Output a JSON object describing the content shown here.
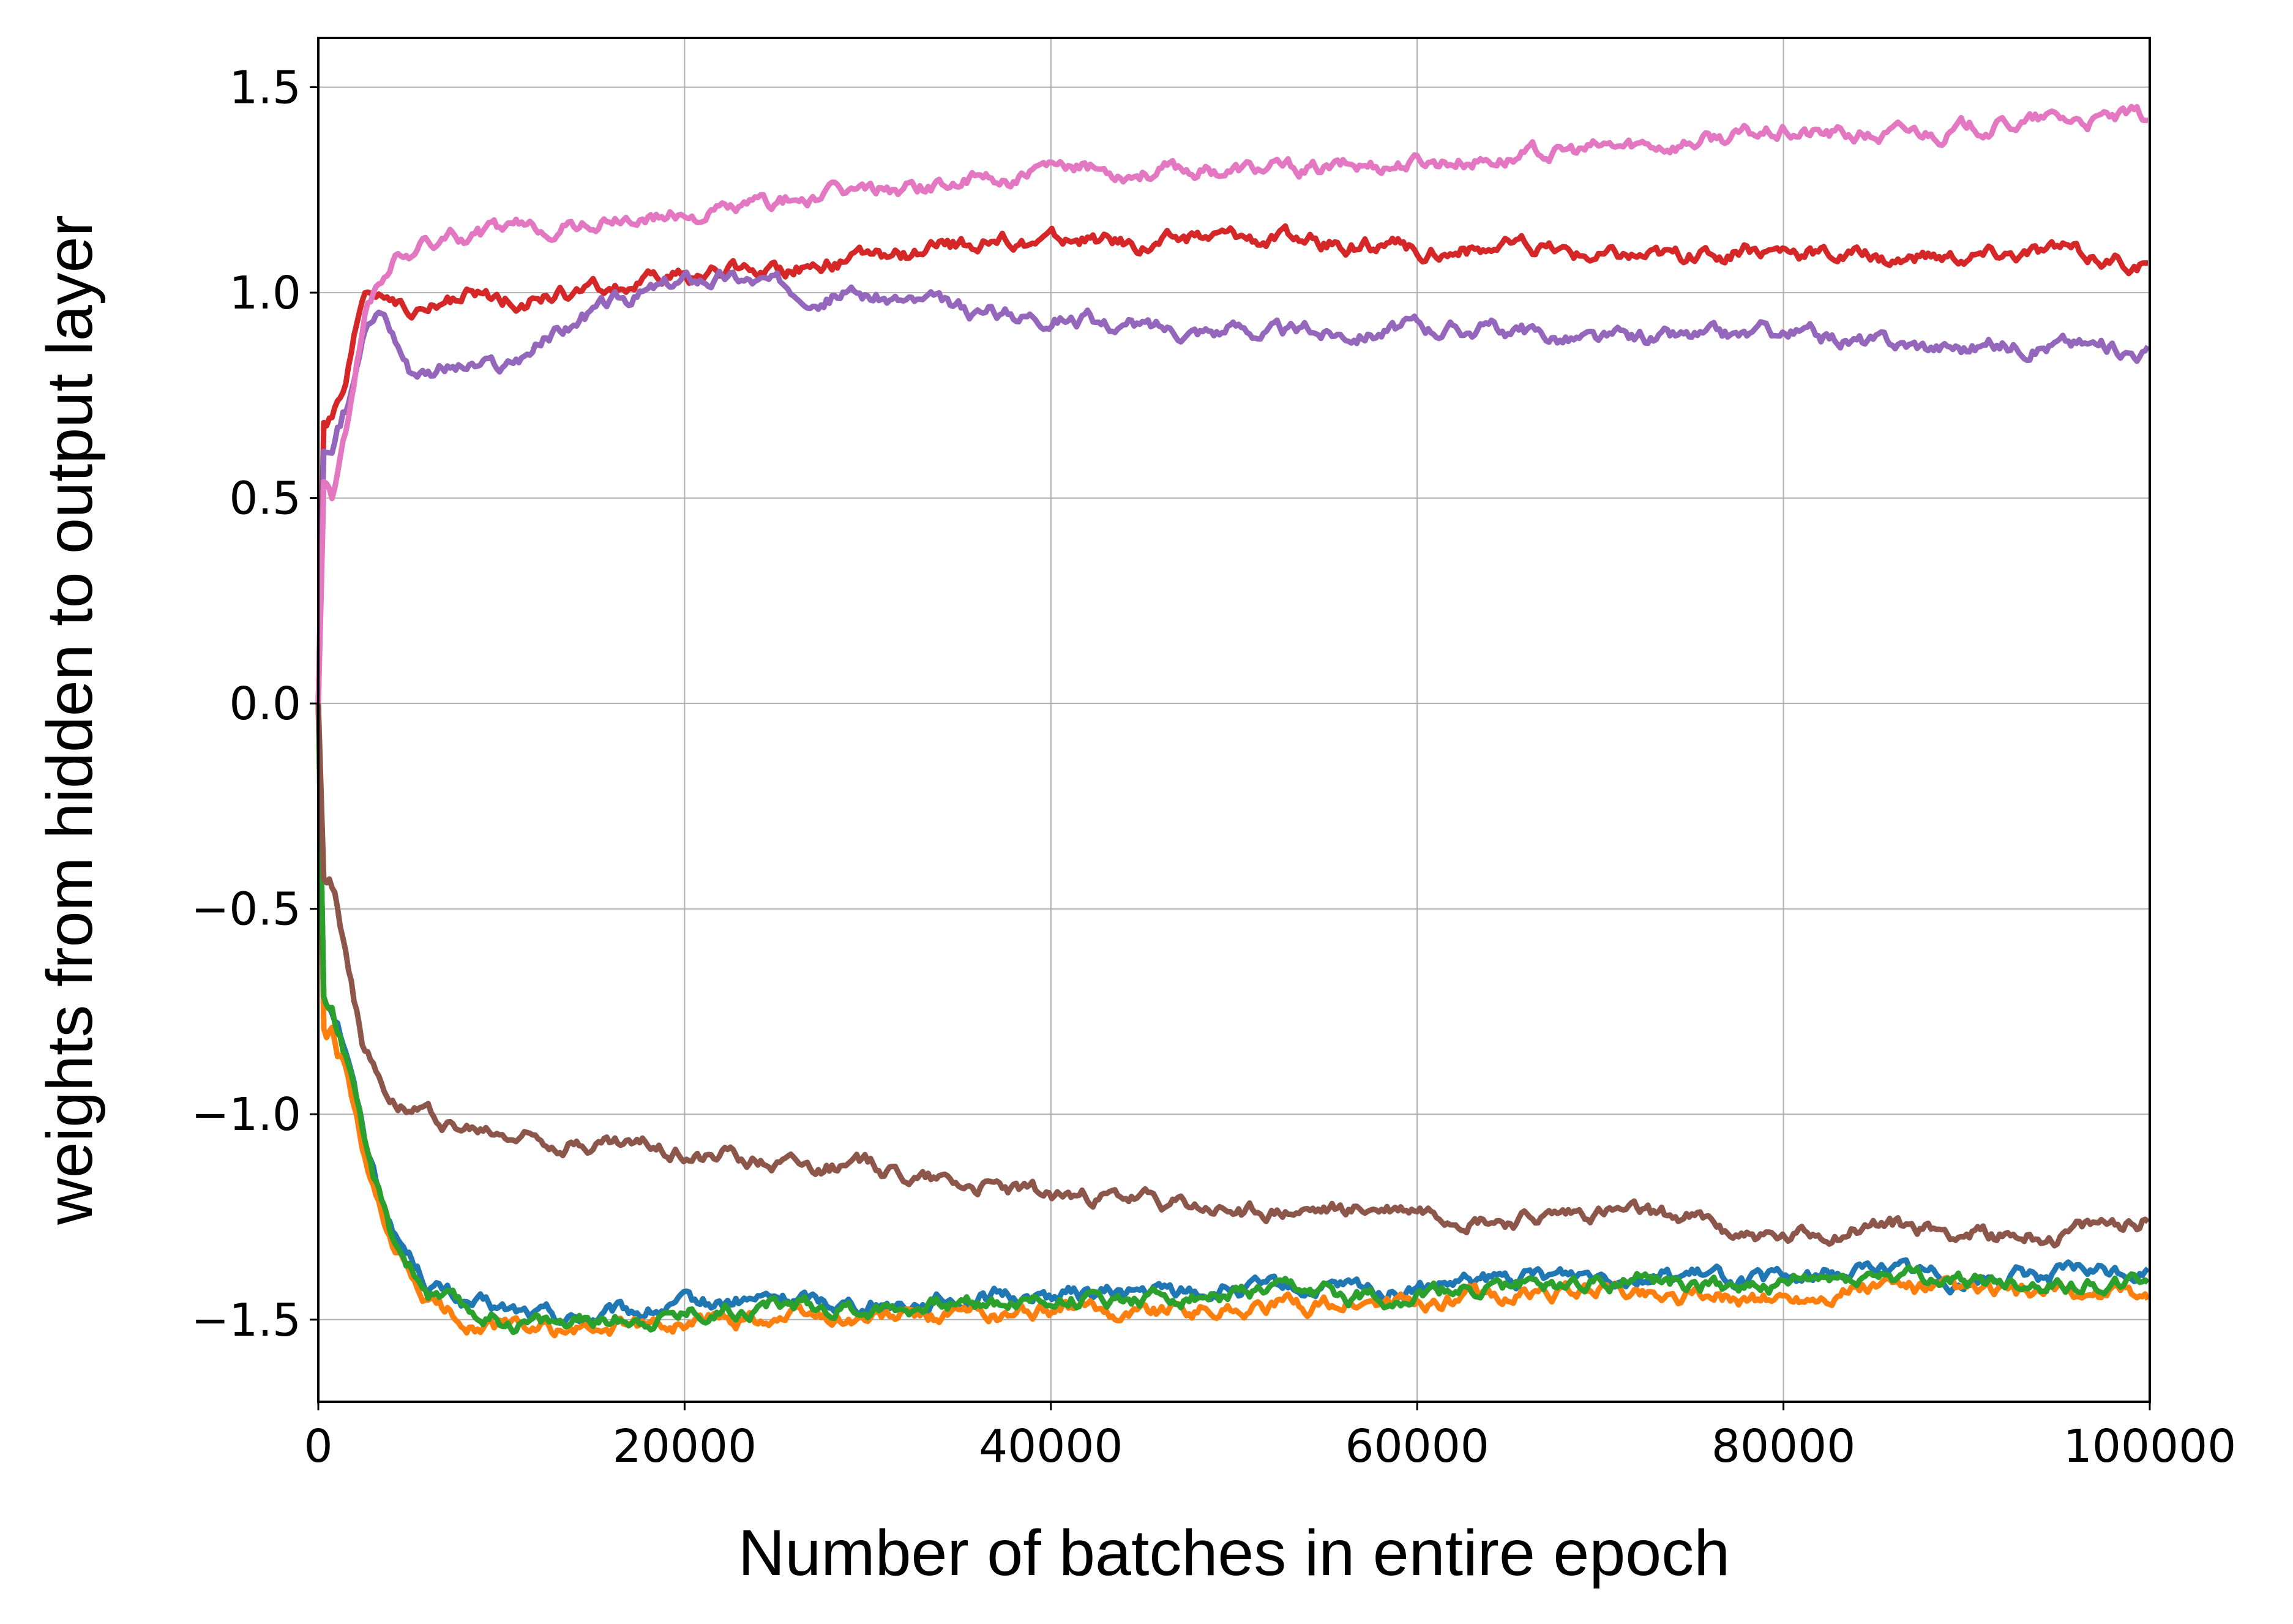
{
  "chart_data": {
    "type": "line",
    "title": "",
    "xlabel": "Number of batches in entire epoch",
    "ylabel": "weights from hidden to output layer",
    "xlim": [
      0,
      100000
    ],
    "ylim": [
      -1.7,
      1.62
    ],
    "xticks": [
      0,
      20000,
      40000,
      60000,
      80000,
      100000
    ],
    "xtick_labels": [
      "0",
      "20000",
      "40000",
      "60000",
      "80000",
      "100000"
    ],
    "yticks": [
      -1.5,
      -1.0,
      -0.5,
      0.0,
      0.5,
      1.0,
      1.5
    ],
    "ytick_labels": [
      "−1.5",
      "−1.0",
      "−0.5",
      "0.0",
      "0.5",
      "1.0",
      "1.5"
    ],
    "grid": true,
    "legend": "none",
    "series": [
      {
        "color": "#1f77b4",
        "x": [
          0,
          300,
          800,
          1500,
          2500,
          4000,
          6000,
          8000,
          10000,
          14000,
          20000,
          25000,
          30000,
          40000,
          50000,
          60000,
          70000,
          80000,
          85000,
          90000,
          95000,
          100000
        ],
        "y": [
          0.0,
          -0.7,
          -0.72,
          -0.82,
          -1.05,
          -1.28,
          -1.41,
          -1.46,
          -1.48,
          -1.5,
          -1.47,
          -1.45,
          -1.46,
          -1.44,
          -1.43,
          -1.43,
          -1.38,
          -1.41,
          -1.37,
          -1.4,
          -1.39,
          -1.38
        ]
      },
      {
        "color": "#ff7f0e",
        "x": [
          0,
          300,
          800,
          1500,
          2500,
          4000,
          6000,
          8000,
          10000,
          14000,
          20000,
          25000,
          30000,
          40000,
          50000,
          60000,
          70000,
          80000,
          85000,
          90000,
          95000,
          100000
        ],
        "y": [
          0.0,
          -0.8,
          -0.82,
          -0.9,
          -1.12,
          -1.34,
          -1.46,
          -1.5,
          -1.52,
          -1.53,
          -1.51,
          -1.49,
          -1.5,
          -1.48,
          -1.47,
          -1.46,
          -1.43,
          -1.45,
          -1.42,
          -1.44,
          -1.44,
          -1.44
        ]
      },
      {
        "color": "#2ca02c",
        "x": [
          0,
          300,
          800,
          1500,
          2500,
          4000,
          6000,
          8000,
          10000,
          14000,
          20000,
          25000,
          30000,
          40000,
          50000,
          60000,
          70000,
          80000,
          85000,
          90000,
          95000,
          100000
        ],
        "y": [
          0.0,
          -0.72,
          -0.75,
          -0.85,
          -1.08,
          -1.3,
          -1.43,
          -1.48,
          -1.5,
          -1.51,
          -1.48,
          -1.46,
          -1.47,
          -1.45,
          -1.44,
          -1.44,
          -1.4,
          -1.42,
          -1.39,
          -1.41,
          -1.41,
          -1.41
        ]
      },
      {
        "color": "#d62728",
        "x": [
          0,
          300,
          800,
          1500,
          2500,
          4000,
          5000,
          8000,
          10000,
          15000,
          20000,
          25000,
          30000,
          35000,
          40000,
          45000,
          50000,
          55000,
          60000,
          65000,
          70000,
          75000,
          80000,
          85000,
          90000,
          95000,
          100000
        ],
        "y": [
          0.0,
          0.68,
          0.68,
          0.75,
          0.99,
          1.0,
          0.94,
          0.99,
          0.98,
          1.0,
          1.04,
          1.06,
          1.08,
          1.11,
          1.13,
          1.12,
          1.14,
          1.12,
          1.1,
          1.11,
          1.09,
          1.09,
          1.11,
          1.08,
          1.09,
          1.1,
          1.06
        ]
      },
      {
        "color": "#9467bd",
        "x": [
          0,
          300,
          800,
          1500,
          2500,
          3500,
          5000,
          7000,
          10000,
          13000,
          16000,
          20000,
          22000,
          25000,
          28000,
          31000,
          35000,
          40000,
          45000,
          50000,
          55000,
          60000,
          65000,
          70000,
          75000,
          80000,
          85000,
          90000,
          95000,
          100000
        ],
        "y": [
          0.0,
          0.62,
          0.62,
          0.7,
          0.94,
          0.96,
          0.82,
          0.82,
          0.81,
          0.9,
          0.97,
          1.03,
          1.04,
          1.02,
          1.0,
          0.99,
          0.95,
          0.95,
          0.91,
          0.91,
          0.9,
          0.92,
          0.91,
          0.88,
          0.89,
          0.9,
          0.88,
          0.87,
          0.88,
          0.86
        ]
      },
      {
        "color": "#8c564b",
        "x": [
          0,
          300,
          800,
          1500,
          2500,
          4000,
          6000,
          8000,
          10000,
          15000,
          20000,
          25000,
          30000,
          35000,
          40000,
          45000,
          50000,
          55000,
          60000,
          65000,
          70000,
          75000,
          80000,
          85000,
          90000,
          95000,
          100000
        ],
        "y": [
          0.0,
          -0.42,
          -0.45,
          -0.58,
          -0.85,
          -0.95,
          -1.0,
          -1.04,
          -1.05,
          -1.07,
          -1.09,
          -1.11,
          -1.13,
          -1.16,
          -1.2,
          -1.21,
          -1.24,
          -1.24,
          -1.23,
          -1.26,
          -1.24,
          -1.26,
          -1.31,
          -1.27,
          -1.29,
          -1.3,
          -1.25
        ]
      },
      {
        "color": "#e377c2",
        "x": [
          0,
          300,
          800,
          1500,
          2500,
          4000,
          6000,
          8000,
          10000,
          15000,
          20000,
          25000,
          30000,
          35000,
          40000,
          45000,
          50000,
          55000,
          60000,
          65000,
          70000,
          75000,
          80000,
          85000,
          90000,
          95000,
          100000
        ],
        "y": [
          0.0,
          0.55,
          0.52,
          0.65,
          0.95,
          1.08,
          1.12,
          1.14,
          1.15,
          1.17,
          1.19,
          1.22,
          1.25,
          1.27,
          1.29,
          1.3,
          1.3,
          1.3,
          1.32,
          1.33,
          1.35,
          1.37,
          1.39,
          1.38,
          1.4,
          1.42,
          1.42
        ]
      }
    ]
  }
}
